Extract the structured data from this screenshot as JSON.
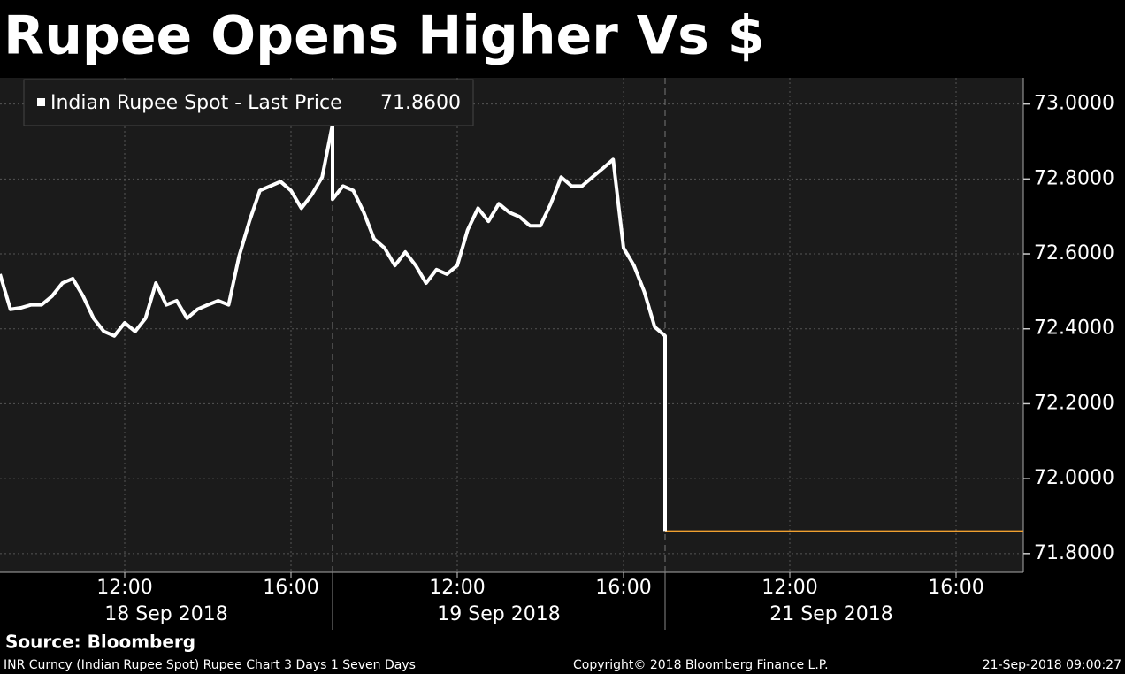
{
  "chart_data": {
    "type": "line",
    "title": "Rupee Opens Higher Vs $",
    "categories": [
      null,
      null,
      null,
      null,
      null,
      null,
      null,
      null,
      null,
      null,
      null,
      null,
      "12:00",
      null,
      null,
      null,
      null,
      null,
      null,
      null,
      null,
      null,
      null,
      null,
      null,
      null,
      null,
      null,
      "16:00",
      null,
      null,
      null,
      null,
      null,
      null,
      null,
      null,
      null,
      null,
      null,
      null,
      null,
      null,
      null,
      null,
      "12:00",
      null,
      null,
      null,
      null,
      null,
      null,
      null,
      null,
      null,
      null,
      null,
      null,
      null,
      null,
      null,
      "16:00",
      null,
      null,
      null,
      null,
      null,
      null,
      null,
      null,
      null,
      null,
      null,
      null,
      null,
      null,
      null,
      null,
      "12:00",
      null,
      null,
      null,
      null,
      null,
      null,
      null,
      null,
      null,
      null,
      null,
      null,
      null,
      null,
      null,
      "16:00",
      null,
      null,
      null,
      null
    ],
    "days": [
      "18 Sep 2018",
      "19 Sep 2018",
      "21 Sep 2018"
    ],
    "series": [
      {
        "name": "Indian Rupee Spot - Last Price",
        "color": "#ffffff",
        "values": [
          72.546,
          72.452,
          72.456,
          72.464,
          72.464,
          72.487,
          72.522,
          72.534,
          72.487,
          72.428,
          72.393,
          72.381,
          72.416,
          72.393,
          72.428,
          72.522,
          72.464,
          72.475,
          72.428,
          72.452,
          72.464,
          72.475,
          72.464,
          72.593,
          72.687,
          72.769,
          72.781,
          72.793,
          72.769,
          72.722,
          72.758,
          72.805,
          72.946,
          72.746,
          72.781,
          72.769,
          72.711,
          72.64,
          72.616,
          72.569,
          72.605,
          72.569,
          72.522,
          72.558,
          72.546,
          72.569,
          72.664,
          72.722,
          72.687,
          72.734,
          72.711,
          72.699,
          72.675,
          72.675,
          72.734,
          72.805,
          72.781,
          72.781,
          72.805,
          72.828,
          72.852,
          72.616,
          72.569,
          72.499,
          72.405,
          72.381,
          71.86,
          null,
          null,
          null,
          null,
          null,
          null,
          null,
          null,
          null,
          null,
          null,
          null,
          null,
          null,
          null,
          null,
          null,
          null,
          null,
          null,
          null,
          null,
          null,
          null,
          null,
          null,
          null,
          null,
          null,
          null,
          null,
          null
        ]
      }
    ],
    "last_price": {
      "value": 71.86,
      "label": "71.8600",
      "color": "#f0a030"
    },
    "ylim": [
      71.75,
      73.07
    ],
    "yticks": [
      {
        "value": 71.8,
        "label": "71.8000"
      },
      {
        "value": 72.0,
        "label": "72.0000"
      },
      {
        "value": 72.2,
        "label": "72.2000"
      },
      {
        "value": 72.4,
        "label": "72.4000"
      },
      {
        "value": 72.6,
        "label": "72.6000"
      },
      {
        "value": 72.8,
        "label": "72.8000"
      },
      {
        "value": 73.0,
        "label": "73.0000"
      }
    ],
    "grid": true
  },
  "footer": {
    "source": "Source: Bloomberg",
    "description": "INR Curncy (Indian Rupee Spot) Rupee Chart 3 Days 1 Seven Days",
    "copyright": "Copyright© 2018 Bloomberg Finance L.P.",
    "timestamp": "21-Sep-2018 09:00:27"
  }
}
